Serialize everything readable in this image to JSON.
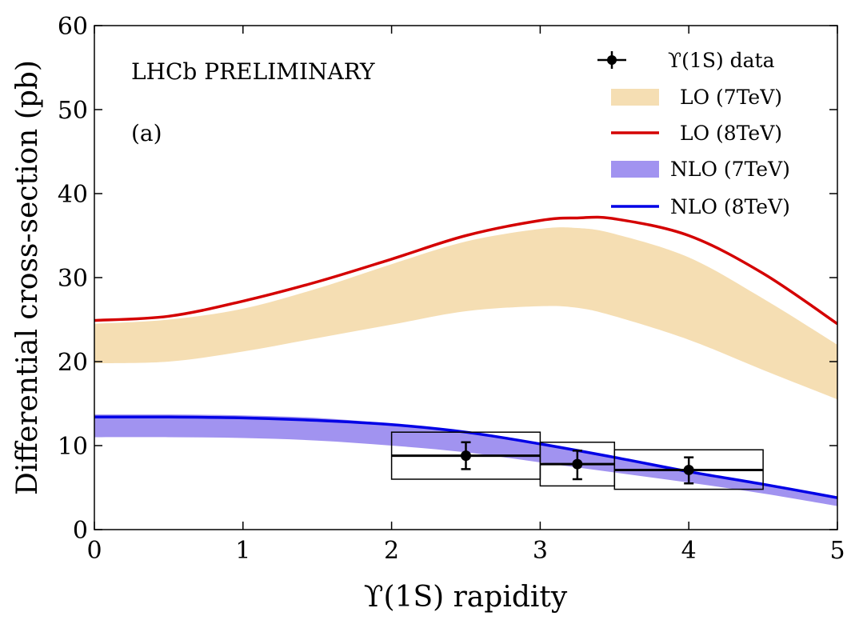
{
  "chart_data": {
    "type": "line",
    "title": "",
    "xlabel": "ϒ(1S) rapidity",
    "ylabel": "Differential cross-section (pb)",
    "xlim": [
      0,
      5
    ],
    "ylim": [
      0,
      60
    ],
    "xticks": [
      0,
      1,
      2,
      3,
      4,
      5
    ],
    "yticks": [
      0,
      10,
      20,
      30,
      40,
      50,
      60
    ],
    "grid": false,
    "legend_position": "top-right",
    "annotations": [
      "LHCb PRELIMINARY",
      "(a)"
    ],
    "series": [
      {
        "name": "LO (7TeV)",
        "kind": "band",
        "color": "#f5deb3",
        "x": [
          0,
          0.5,
          1,
          1.5,
          2,
          2.5,
          3,
          3.25,
          3.5,
          4,
          4.5,
          5
        ],
        "lower": [
          19.8,
          20.0,
          21.2,
          22.8,
          24.4,
          26.0,
          26.6,
          26.4,
          25.4,
          22.6,
          19.0,
          15.5
        ],
        "upper": [
          24.5,
          25.0,
          26.3,
          28.7,
          31.6,
          34.3,
          35.8,
          35.9,
          35.2,
          32.4,
          27.5,
          22.0
        ]
      },
      {
        "name": "LO (8TeV)",
        "kind": "line",
        "color": "#d40000",
        "x": [
          0,
          0.5,
          1,
          1.5,
          2,
          2.5,
          3,
          3.25,
          3.5,
          4,
          4.5,
          5
        ],
        "y": [
          24.9,
          25.4,
          27.2,
          29.5,
          32.2,
          35.0,
          36.8,
          37.1,
          37.0,
          35.0,
          30.5,
          24.5
        ]
      },
      {
        "name": "NLO (7TeV)",
        "kind": "band",
        "color": "#a193f0",
        "x": [
          0,
          0.5,
          1,
          1.5,
          2,
          2.5,
          3,
          3.5,
          4,
          4.5,
          5
        ],
        "lower": [
          11.0,
          11.0,
          10.9,
          10.6,
          10.0,
          9.2,
          8.0,
          6.8,
          5.6,
          4.3,
          2.8
        ],
        "upper": [
          13.7,
          13.7,
          13.6,
          13.3,
          12.6,
          11.6,
          10.3,
          8.7,
          7.0,
          5.4,
          3.9
        ]
      },
      {
        "name": "NLO (8TeV)",
        "kind": "line",
        "color": "#0000e6",
        "x": [
          0,
          0.5,
          1,
          1.5,
          2,
          2.5,
          3,
          3.5,
          4,
          4.5,
          5
        ],
        "y": [
          13.4,
          13.4,
          13.3,
          13.0,
          12.5,
          11.6,
          10.2,
          8.6,
          6.9,
          5.4,
          3.8
        ]
      },
      {
        "name": "ϒ(1S) data",
        "kind": "points",
        "color": "#000000",
        "points": [
          {
            "x": 2.5,
            "y": 8.8,
            "xlo": 2.0,
            "xhi": 3.0,
            "ylo": 7.2,
            "yhi": 10.4,
            "syslo": 6.0,
            "syshi": 11.6
          },
          {
            "x": 3.25,
            "y": 7.8,
            "xlo": 3.0,
            "xhi": 3.5,
            "ylo": 6.0,
            "yhi": 9.4,
            "syslo": 5.2,
            "syshi": 10.4
          },
          {
            "x": 4.0,
            "y": 7.1,
            "xlo": 3.5,
            "xhi": 4.5,
            "ylo": 5.5,
            "yhi": 8.6,
            "syslo": 4.8,
            "syshi": 9.5
          }
        ]
      }
    ]
  }
}
